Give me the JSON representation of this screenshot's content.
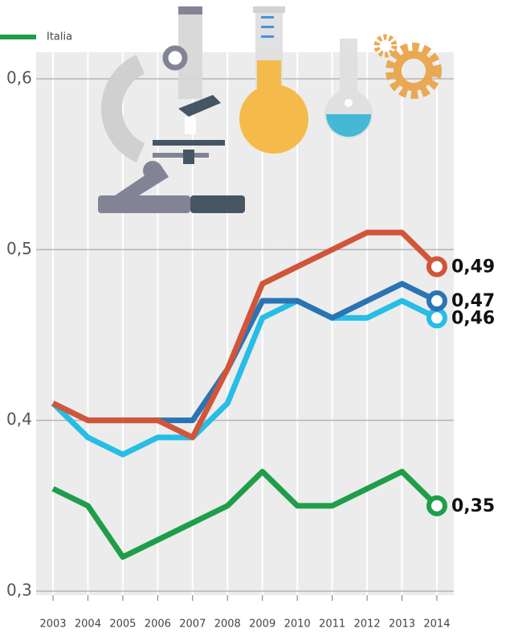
{
  "chart_data": {
    "type": "line",
    "categories": [
      "2003",
      "2004",
      "2005",
      "2006",
      "2007",
      "2008",
      "2009",
      "2010",
      "2011",
      "2012",
      "2013",
      "2014"
    ],
    "series": [
      {
        "name": "Italia",
        "color": "#1f9e4a",
        "values": [
          0.36,
          0.35,
          0.32,
          0.33,
          0.34,
          0.35,
          0.37,
          0.35,
          0.35,
          0.36,
          0.37,
          0.35
        ],
        "value_labels": [
          null,
          null,
          null,
          null,
          null,
          null,
          null,
          null,
          null,
          null,
          null,
          "0,35"
        ]
      },
      {
        "color": "#26bde6",
        "values": [
          0.41,
          0.39,
          0.38,
          0.39,
          0.39,
          0.41,
          0.46,
          0.47,
          0.46,
          0.46,
          0.47,
          0.46
        ],
        "value_labels": [
          null,
          null,
          null,
          null,
          null,
          null,
          null,
          null,
          null,
          null,
          null,
          "0,46"
        ]
      },
      {
        "color": "#2a74b5",
        "values": [
          0.41,
          0.4,
          0.4,
          0.4,
          0.4,
          0.43,
          0.47,
          0.47,
          0.46,
          0.47,
          0.48,
          0.47
        ],
        "value_labels": [
          null,
          null,
          null,
          null,
          null,
          null,
          null,
          null,
          null,
          null,
          null,
          "0,47"
        ]
      },
      {
        "color": "#d2553a",
        "values": [
          0.41,
          0.4,
          0.4,
          0.4,
          0.39,
          0.43,
          0.48,
          0.49,
          0.5,
          0.51,
          0.51,
          0.49
        ],
        "value_labels": [
          null,
          null,
          null,
          null,
          null,
          null,
          null,
          null,
          null,
          null,
          null,
          "0,49"
        ]
      }
    ],
    "ylim": [
      0.3,
      0.6
    ],
    "yticks": [
      {
        "value": 0.3,
        "label": "0,3"
      },
      {
        "value": 0.4,
        "label": "0,4"
      },
      {
        "value": 0.5,
        "label": "0,5"
      },
      {
        "value": 0.6,
        "label": "0,6"
      }
    ],
    "grid": true
  }
}
